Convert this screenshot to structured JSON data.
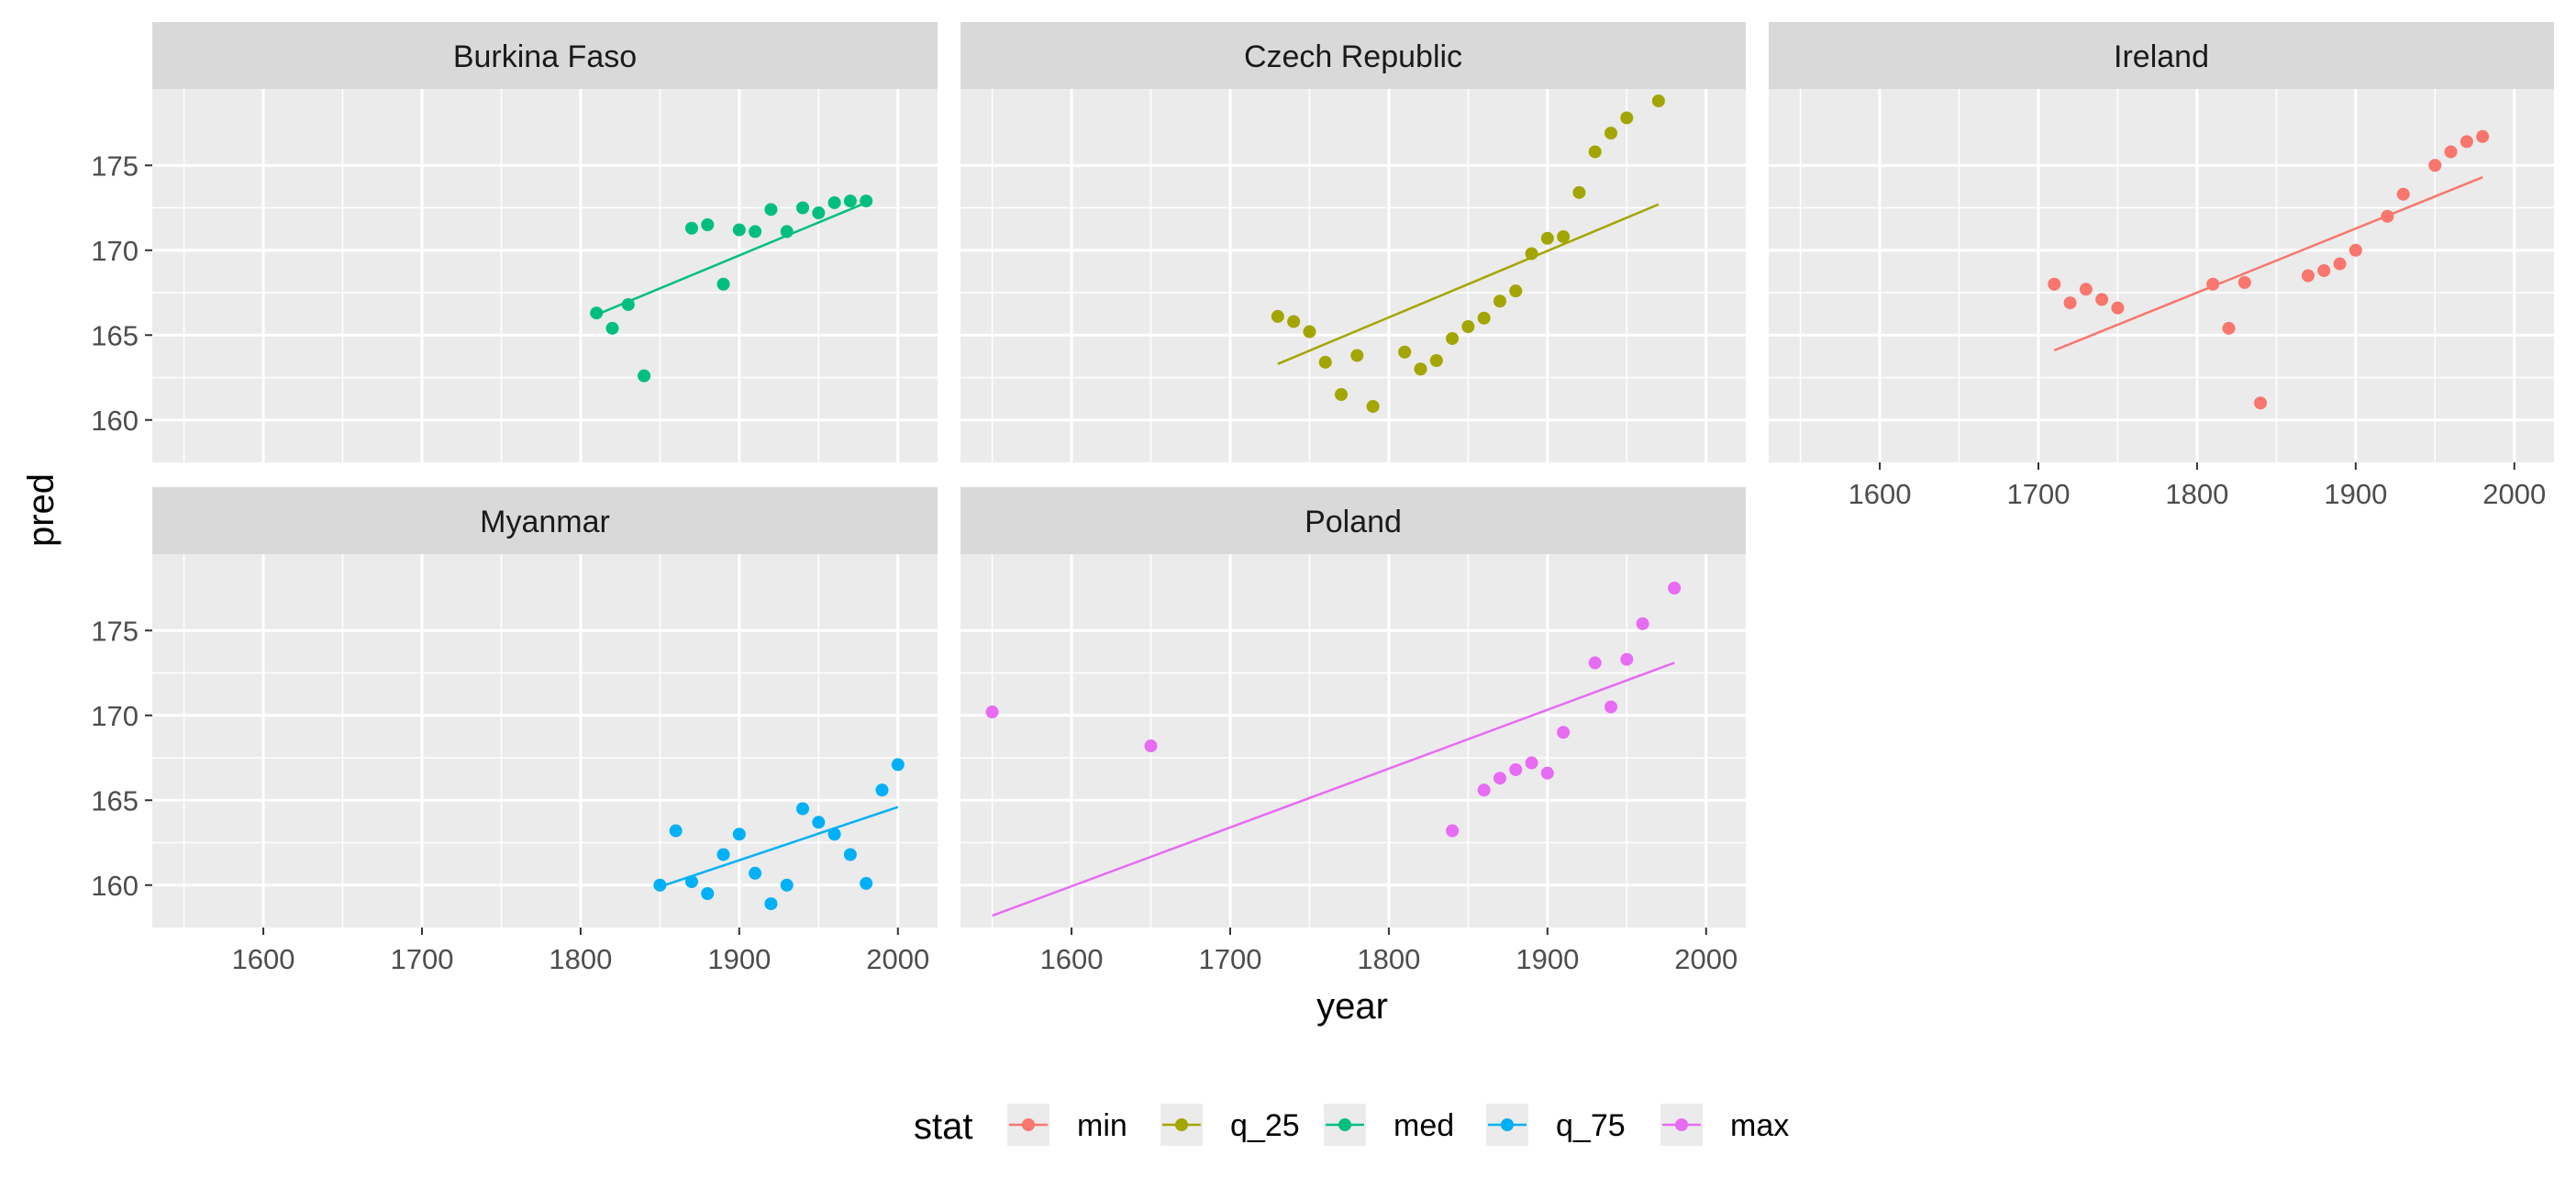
{
  "chart_data": {
    "type": "scatter",
    "xlabel": "year",
    "ylabel": "pred",
    "xlim": [
      1530,
      2025
    ],
    "ylim": [
      157.5,
      179.5
    ],
    "x_ticks": [
      1600,
      1700,
      1800,
      1900,
      2000
    ],
    "x_tick_labels": [
      "1600",
      "1700",
      "1800",
      "1900",
      "2000"
    ],
    "y_ticks": [
      160,
      165,
      170,
      175
    ],
    "y_tick_labels": [
      "160",
      "165",
      "170",
      "175"
    ],
    "grid": true,
    "legend": {
      "title": "stat",
      "placement": "bottom",
      "entries": [
        {
          "name": "min",
          "color": "#F8766D"
        },
        {
          "name": "q_25",
          "color": "#A3A500"
        },
        {
          "name": "med",
          "color": "#00BF7D"
        },
        {
          "name": "q_75",
          "color": "#00B0F6"
        },
        {
          "name": "max",
          "color": "#E76BF3"
        }
      ]
    },
    "panels": [
      {
        "country": "Burkina Faso",
        "stat": "med",
        "color": "#00BF7D",
        "points": [
          [
            1810,
            166.3
          ],
          [
            1820,
            165.4
          ],
          [
            1830,
            166.8
          ],
          [
            1840,
            162.6
          ],
          [
            1870,
            171.3
          ],
          [
            1880,
            171.5
          ],
          [
            1890,
            168.0
          ],
          [
            1900,
            171.2
          ],
          [
            1910,
            171.1
          ],
          [
            1920,
            172.4
          ],
          [
            1930,
            171.1
          ],
          [
            1940,
            172.5
          ],
          [
            1950,
            172.2
          ],
          [
            1960,
            172.8
          ],
          [
            1970,
            172.9
          ],
          [
            1980,
            172.9
          ]
        ],
        "fit": [
          [
            1810,
            166.2
          ],
          [
            1980,
            172.8
          ]
        ]
      },
      {
        "country": "Czech Republic",
        "stat": "q_25",
        "color": "#A3A500",
        "points": [
          [
            1730,
            166.1
          ],
          [
            1740,
            165.8
          ],
          [
            1750,
            165.2
          ],
          [
            1760,
            163.4
          ],
          [
            1770,
            161.5
          ],
          [
            1780,
            163.8
          ],
          [
            1790,
            160.8
          ],
          [
            1810,
            164.0
          ],
          [
            1820,
            163.0
          ],
          [
            1830,
            163.5
          ],
          [
            1840,
            164.8
          ],
          [
            1850,
            165.5
          ],
          [
            1860,
            166.0
          ],
          [
            1870,
            167.0
          ],
          [
            1880,
            167.6
          ],
          [
            1890,
            169.8
          ],
          [
            1900,
            170.7
          ],
          [
            1910,
            170.8
          ],
          [
            1920,
            173.4
          ],
          [
            1930,
            175.8
          ],
          [
            1940,
            176.9
          ],
          [
            1950,
            177.8
          ],
          [
            1970,
            178.8
          ]
        ],
        "fit": [
          [
            1730,
            163.3
          ],
          [
            1970,
            172.7
          ]
        ]
      },
      {
        "country": "Ireland",
        "stat": "min",
        "color": "#F8766D",
        "points": [
          [
            1710,
            168.0
          ],
          [
            1720,
            166.9
          ],
          [
            1730,
            167.7
          ],
          [
            1740,
            167.1
          ],
          [
            1750,
            166.6
          ],
          [
            1810,
            168.0
          ],
          [
            1820,
            165.4
          ],
          [
            1830,
            168.1
          ],
          [
            1840,
            161.0
          ],
          [
            1870,
            168.5
          ],
          [
            1880,
            168.8
          ],
          [
            1890,
            169.2
          ],
          [
            1900,
            170.0
          ],
          [
            1920,
            172.0
          ],
          [
            1930,
            173.3
          ],
          [
            1950,
            175.0
          ],
          [
            1960,
            175.8
          ],
          [
            1970,
            176.4
          ],
          [
            1980,
            176.7
          ]
        ],
        "fit": [
          [
            1710,
            164.1
          ],
          [
            1980,
            174.3
          ]
        ]
      },
      {
        "country": "Myanmar",
        "stat": "q_75",
        "color": "#00B0F6",
        "points": [
          [
            1850,
            160.0
          ],
          [
            1860,
            163.2
          ],
          [
            1870,
            160.2
          ],
          [
            1880,
            159.5
          ],
          [
            1890,
            161.8
          ],
          [
            1900,
            163.0
          ],
          [
            1910,
            160.7
          ],
          [
            1920,
            158.9
          ],
          [
            1930,
            160.0
          ],
          [
            1940,
            164.5
          ],
          [
            1950,
            163.7
          ],
          [
            1960,
            163.0
          ],
          [
            1970,
            161.8
          ],
          [
            1980,
            160.1
          ],
          [
            1990,
            165.6
          ],
          [
            2000,
            167.1
          ]
        ],
        "fit": [
          [
            1850,
            159.9
          ],
          [
            2000,
            164.6
          ]
        ]
      },
      {
        "country": "Poland",
        "stat": "max",
        "color": "#E76BF3",
        "points": [
          [
            1550,
            170.2
          ],
          [
            1650,
            168.2
          ],
          [
            1840,
            163.2
          ],
          [
            1860,
            165.6
          ],
          [
            1870,
            166.3
          ],
          [
            1880,
            166.8
          ],
          [
            1890,
            167.2
          ],
          [
            1900,
            166.6
          ],
          [
            1910,
            169.0
          ],
          [
            1930,
            173.1
          ],
          [
            1940,
            170.5
          ],
          [
            1950,
            173.3
          ],
          [
            1960,
            175.4
          ],
          [
            1980,
            177.5
          ]
        ],
        "fit": [
          [
            1550,
            158.2
          ],
          [
            1980,
            173.1
          ]
        ]
      }
    ]
  }
}
